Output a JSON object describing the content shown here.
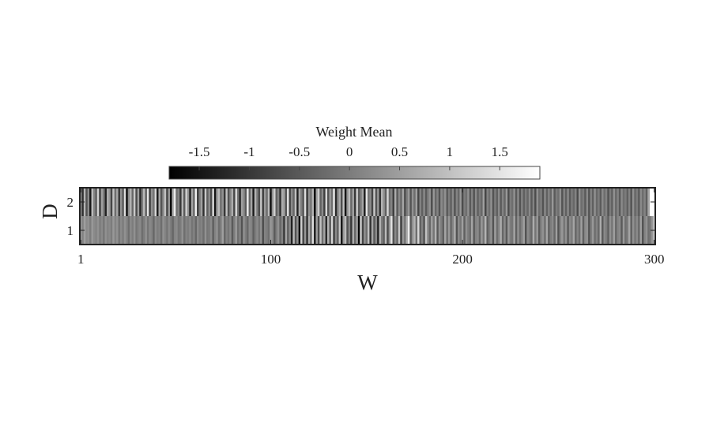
{
  "chart_data": {
    "type": "heatmap",
    "colormap": "gray",
    "title": "",
    "xlabel": "W",
    "ylabel": "D",
    "x_range": [
      1,
      300
    ],
    "y_rows": [
      2,
      1
    ],
    "xticks": [
      1,
      100,
      200,
      300
    ],
    "yticks": [
      2,
      1
    ],
    "colorbar": {
      "title": "Weight Mean",
      "location": "top",
      "range": [
        -1.8,
        1.9
      ],
      "ticks": [
        -1.5,
        -1,
        -0.5,
        0,
        0.5,
        1,
        1.5
      ],
      "tick_labels": [
        "-1.5",
        "-1",
        "-0.5",
        "0",
        "0.5",
        "1",
        "1.5"
      ]
    },
    "grid": false,
    "rows": [
      {
        "D": 2,
        "values": [
          0.3,
          -1.1,
          0.8,
          -0.6,
          0.2,
          -1.5,
          0.9,
          0.1,
          -0.4,
          1.2,
          -0.9,
          0.5,
          0.0,
          -1.3,
          0.7,
          0.4,
          -0.8,
          1.0,
          -0.2,
          0.6,
          -1.0,
          0.3,
          -0.5,
          1.4,
          -1.6,
          0.2,
          0.8,
          -0.3,
          1.1,
          -0.7,
          0.5,
          -1.2,
          0.0,
          0.9,
          -0.4,
          1.5,
          -0.9,
          0.3,
          -0.1,
          1.3,
          -1.4,
          0.6,
          -0.6,
          0.2,
          1.0,
          -0.8,
          0.4,
          -1.7,
          0.7,
          1.6,
          -0.2,
          0.1,
          -1.0,
          0.8,
          -0.5,
          1.2,
          0.3,
          -1.3,
          0.6,
          -0.3,
          1.7,
          -0.9,
          0.0,
          0.5,
          -1.1,
          1.1,
          -0.4,
          0.2,
          -0.7,
          1.4,
          -1.5,
          0.4,
          0.9,
          -0.2,
          0.3,
          -1.0,
          1.0,
          -0.6,
          0.1,
          0.7,
          -0.8,
          1.3,
          -0.1,
          -1.2,
          0.5,
          0.2,
          -0.5,
          1.6,
          -0.3,
          0.6,
          -1.4,
          0.8,
          0.0,
          -0.7,
          1.1,
          -0.9,
          0.4,
          -0.2,
          0.9,
          -1.6,
          0.3,
          1.2,
          -0.4,
          0.1,
          -1.1,
          0.7,
          0.5,
          -0.6,
          1.5,
          -0.8,
          0.2,
          -0.3,
          1.0,
          -1.3,
          0.6,
          0.0,
          -0.5,
          1.4,
          -1.0,
          0.3,
          -0.1,
          0.8,
          -1.7,
          0.5,
          1.1,
          -0.4,
          0.2,
          -0.9,
          1.3,
          -0.6,
          0.4,
          -0.2,
          1.6,
          -1.2,
          0.1,
          0.7,
          -0.7,
          1.0,
          -1.5,
          0.3,
          0.9,
          -0.3,
          0.5,
          -1.0,
          1.2,
          -0.5,
          0.0,
          0.6,
          -1.4,
          1.5,
          -0.1,
          0.2,
          -0.8,
          1.1,
          -0.6,
          0.4,
          -1.1,
          0.8,
          0.3,
          -0.4,
          1.3,
          -0.2,
          0.1,
          -0.9,
          0.7,
          -0.5,
          0.2,
          -0.3,
          0.6,
          -0.7,
          0.0,
          0.4,
          -0.6,
          0.3,
          -0.2,
          0.5,
          -0.8,
          0.1,
          -0.4,
          0.2,
          -0.5,
          0.0,
          0.3,
          -0.7,
          0.4,
          -0.3,
          0.1,
          -0.6,
          0.2,
          -0.1,
          0.3,
          -0.5,
          0.0,
          -0.4,
          0.2,
          -0.6,
          0.1,
          -0.3,
          0.4,
          -0.7,
          0.0,
          -0.2,
          0.3,
          -0.5,
          0.1,
          -0.6,
          0.2,
          -0.4,
          0.0,
          -0.3,
          0.5,
          -0.8,
          0.1,
          -0.2,
          0.3,
          -0.6,
          0.0,
          -0.4,
          0.2,
          -0.5,
          0.1,
          -0.3,
          0.4,
          -0.7,
          0.0,
          -0.2,
          0.3,
          -0.5,
          0.2,
          -0.6,
          0.1,
          -0.4,
          0.0,
          -0.3,
          0.2,
          -0.5,
          0.1,
          -0.7,
          0.3,
          -0.2,
          0.0,
          -0.6,
          0.2,
          -0.4,
          0.1,
          -0.3,
          0.4,
          -0.5,
          0.0,
          -0.2,
          0.3,
          -0.6,
          0.1,
          -0.4,
          0.2,
          -0.5,
          0.0,
          -0.3,
          0.1,
          -0.7,
          0.3,
          -0.2,
          0.0,
          -0.5,
          0.2,
          -0.6,
          0.1,
          -0.4,
          0.3,
          -0.3,
          0.0,
          -0.5,
          0.2,
          -0.2,
          0.1,
          -0.6,
          0.0,
          -0.4,
          0.3,
          -0.3,
          0.1,
          -0.5,
          0.2,
          -0.2,
          0.0,
          -0.4,
          0.1,
          -0.6,
          0.3,
          -0.3,
          0.0,
          -0.5,
          0.2,
          -0.2,
          0.1,
          -0.4,
          0.6
        ]
      },
      {
        "D": 1,
        "values": [
          0.4,
          0.1,
          0.5,
          0.2,
          0.3,
          0.0,
          0.4,
          0.2,
          0.1,
          0.3,
          0.0,
          0.2,
          -0.1,
          0.3,
          0.1,
          0.2,
          0.0,
          0.4,
          0.1,
          0.3,
          -0.1,
          0.2,
          0.0,
          0.3,
          0.1,
          -0.2,
          0.2,
          0.0,
          0.3,
          -0.1,
          0.1,
          0.2,
          -0.2,
          0.0,
          0.3,
          -0.1,
          0.2,
          0.1,
          -0.3,
          0.2,
          0.0,
          0.1,
          -0.2,
          0.3,
          0.1,
          -0.1,
          0.2,
          0.0,
          -0.3,
          0.1,
          0.2,
          -0.1,
          0.0,
          0.3,
          -0.2,
          0.1,
          0.0,
          0.2,
          -0.1,
          0.1,
          -0.3,
          0.2,
          0.0,
          0.1,
          -0.2,
          0.3,
          -0.1,
          0.0,
          0.2,
          -0.4,
          0.1,
          0.3,
          -0.2,
          0.0,
          0.5,
          -0.3,
          0.1,
          -0.1,
          0.2,
          -0.5,
          0.0,
          0.4,
          -0.2,
          0.1,
          -0.6,
          0.3,
          0.0,
          -0.3,
          0.2,
          0.1,
          -0.4,
          0.0,
          0.2,
          -0.1,
          0.3,
          -0.7,
          0.1,
          0.0,
          -0.2,
          0.4,
          0.2,
          -0.5,
          0.0,
          0.3,
          -0.3,
          0.1,
          -1.0,
          0.6,
          -0.4,
          0.2,
          -1.3,
          0.9,
          -0.6,
          0.3,
          -1.6,
          1.2,
          -0.8,
          0.4,
          -1.1,
          0.7,
          -0.3,
          1.4,
          -1.4,
          0.5,
          -0.7,
          1.0,
          -0.2,
          0.6,
          -1.2,
          0.8,
          -0.5,
          1.3,
          -0.9,
          0.2,
          -0.4,
          1.1,
          -1.5,
          0.4,
          0.9,
          -0.6,
          0.1,
          -1.0,
          0.7,
          -0.3,
          0.5,
          -1.7,
          1.2,
          -0.8,
          0.3,
          -0.2,
          1.0,
          -1.1,
          0.6,
          -0.5,
          0.2,
          -1.3,
          0.8,
          0.0,
          -0.4,
          0.9,
          -0.7,
          0.3,
          1.5,
          -0.6,
          0.2,
          -0.3,
          1.1,
          -0.9,
          0.4,
          -0.1,
          0.7,
          1.6,
          -0.5,
          0.3,
          0.8,
          -0.2,
          1.3,
          -0.4,
          0.1,
          -0.6,
          1.0,
          0.2,
          -0.3,
          0.5,
          -0.1,
          0.8,
          -0.5,
          0.3,
          0.0,
          -0.4,
          0.6,
          -0.2,
          0.4,
          -0.3,
          0.1,
          0.7,
          -0.6,
          0.2,
          -0.1,
          0.5,
          -0.4,
          0.3,
          0.0,
          -0.2,
          0.6,
          -0.5,
          0.1,
          0.2,
          -0.3,
          0.4,
          -0.1,
          0.8,
          -0.4,
          0.0,
          0.3,
          -0.6,
          0.5,
          -0.2,
          0.1,
          0.7,
          -0.3,
          0.2,
          -0.5,
          0.4,
          0.0,
          -0.1,
          0.6,
          -0.4,
          0.3,
          -0.2,
          0.1,
          0.5,
          -0.6,
          0.2,
          0.0,
          -0.3,
          0.7,
          -0.1,
          0.4,
          -0.5,
          0.1,
          0.3,
          -0.2,
          0.6,
          -0.4,
          0.0,
          0.2,
          -0.3,
          0.5,
          -0.6,
          0.1,
          0.4,
          -0.1,
          0.3,
          -0.5,
          0.2,
          0.0,
          0.6,
          -0.3,
          0.1,
          -0.2,
          0.5,
          -0.4,
          0.2,
          0.3,
          -0.6,
          0.0,
          0.4,
          -0.2,
          0.1,
          -0.3,
          0.7,
          -0.5,
          0.2,
          0.0,
          -0.4,
          0.3,
          -0.1,
          0.5,
          -0.3,
          0.1,
          0.2,
          -0.5,
          0.4,
          -0.2,
          0.0,
          0.6,
          -0.4,
          0.3,
          -0.1,
          0.2,
          -0.3,
          0.5,
          -0.6,
          0.1,
          0.3,
          -0.2,
          0.0,
          0.4
        ]
      }
    ]
  }
}
